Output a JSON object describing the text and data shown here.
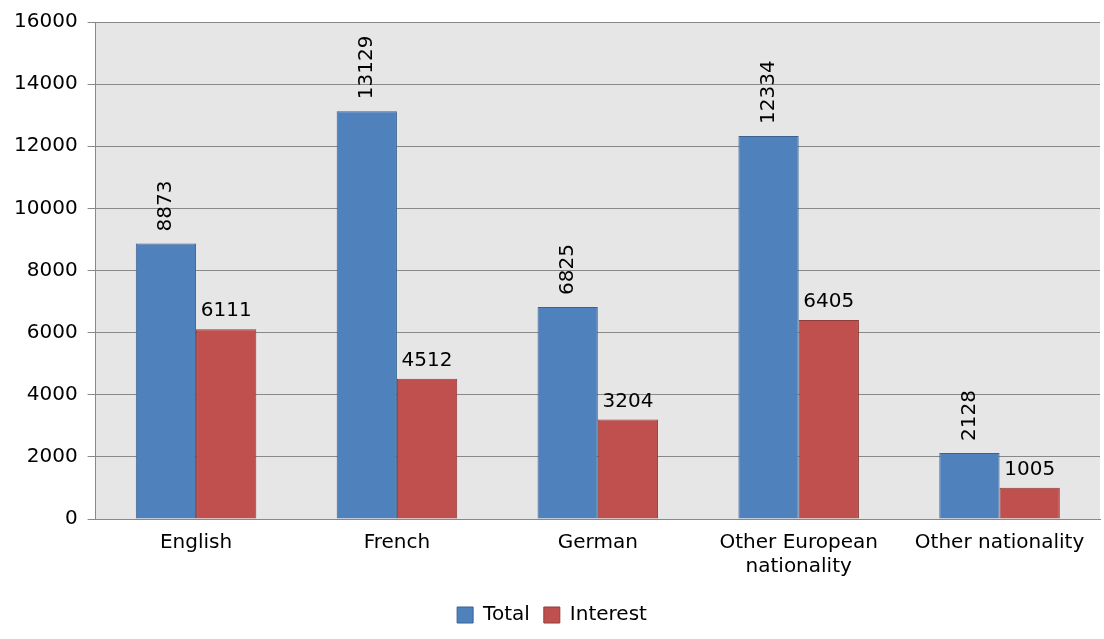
{
  "chart_data": {
    "type": "bar",
    "categories": [
      "English",
      "French",
      "German",
      "Other European nationality",
      "Other nationality"
    ],
    "series": [
      {
        "name": "Total",
        "color": "#4f81bd",
        "values": [
          8873,
          13129,
          6825,
          12334,
          2128
        ]
      },
      {
        "name": "Interest",
        "color": "#c0504d",
        "values": [
          6111,
          4512,
          3204,
          6405,
          1005
        ]
      }
    ],
    "ylim": [
      0,
      16000
    ],
    "yticks": [
      0,
      2000,
      4000,
      6000,
      8000,
      10000,
      12000,
      14000,
      16000
    ],
    "grid": "y",
    "legend": "bottom",
    "data_labels": true
  }
}
